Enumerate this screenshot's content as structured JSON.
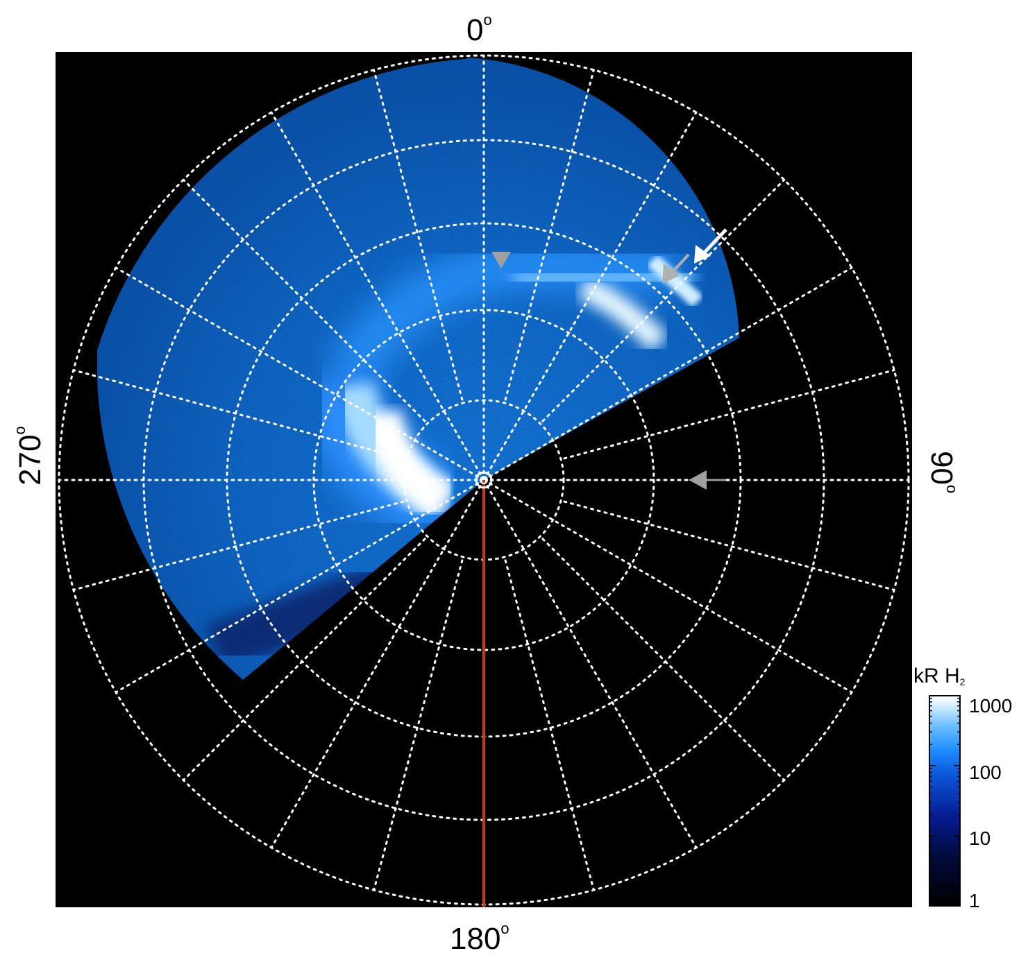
{
  "axes_labels": {
    "top": "0",
    "bottom": "180",
    "left": "270",
    "right": "90",
    "degree_symbol": "o"
  },
  "colorbar": {
    "title_main": "kR H",
    "title_sub": "2",
    "ticks": [
      "1000",
      "100",
      "10",
      "1"
    ],
    "scale": "log",
    "range": [
      1,
      1000
    ]
  },
  "colors": {
    "background": "#000000",
    "grid": "#ffffff",
    "meridian_line": "#c83a14",
    "aurora_bright": "#ffffff",
    "aurora_mid": "#1e8cff",
    "aurora_dim": "#0a3aa8",
    "arrow_white": "#ffffff",
    "arrow_gray": "#a0a0a0"
  },
  "icons": [
    "white-arrow-icon",
    "gray-arrow-icon",
    "gray-triangle-marker-icon",
    "pole-marker-icon"
  ]
}
